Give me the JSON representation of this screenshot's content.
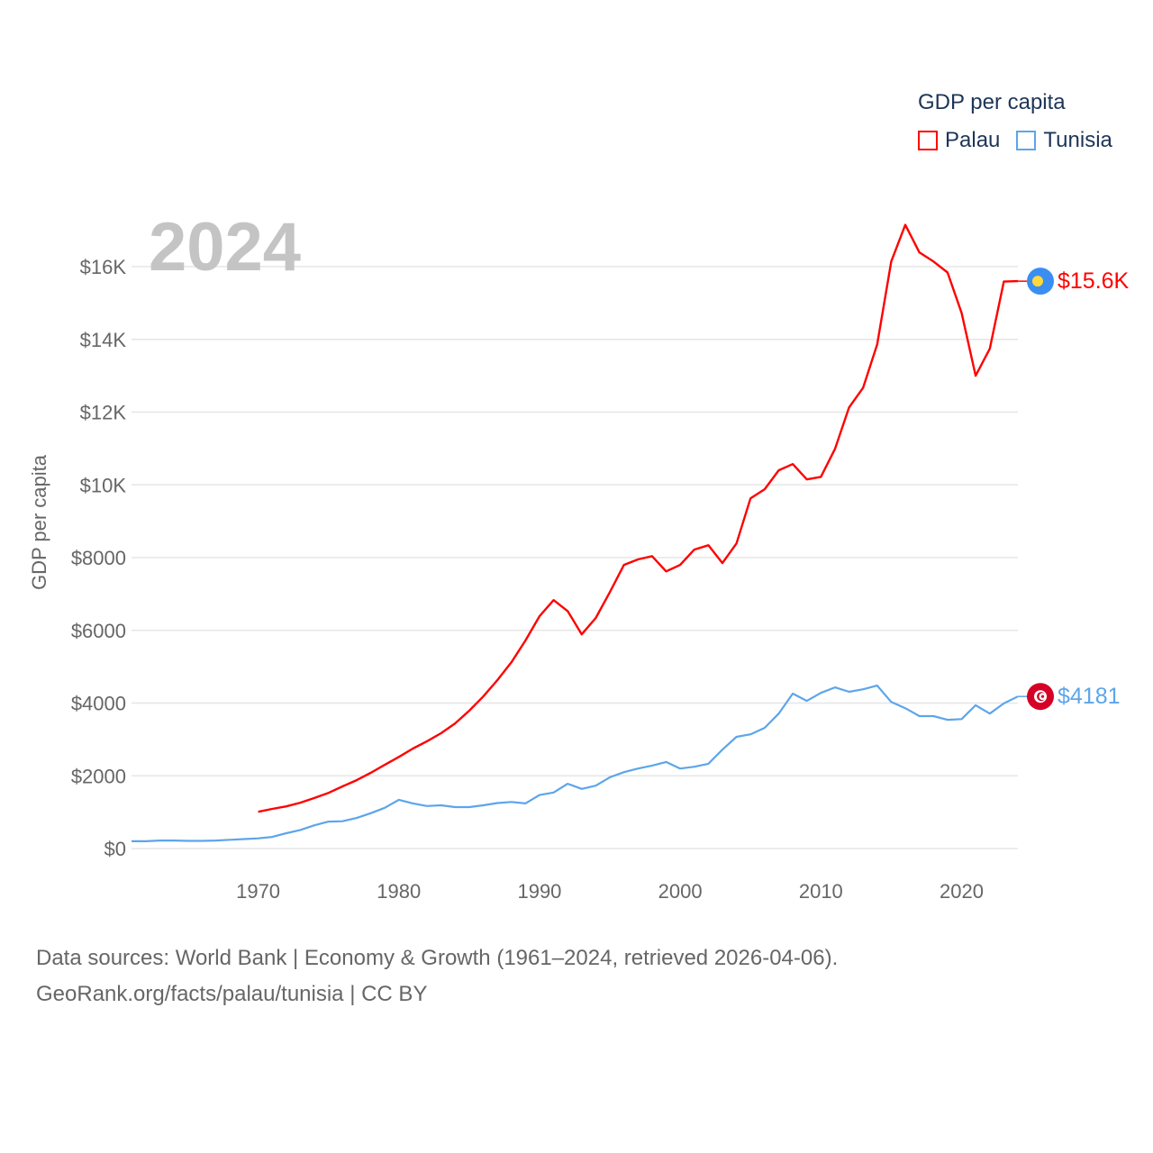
{
  "chart_data": {
    "type": "line",
    "title": "GDP per capita",
    "year_label": "2024",
    "ylabel": "GDP per capita",
    "xlabel": "",
    "xlim": [
      1961,
      2024
    ],
    "ylim": [
      0,
      17200
    ],
    "x_ticks": [
      1970,
      1980,
      1990,
      2000,
      2010,
      2020
    ],
    "y_ticks": [
      {
        "value": 0,
        "label": "$0"
      },
      {
        "value": 2000,
        "label": "$2000"
      },
      {
        "value": 4000,
        "label": "$4000"
      },
      {
        "value": 6000,
        "label": "$6000"
      },
      {
        "value": 8000,
        "label": "$8000"
      },
      {
        "value": 10000,
        "label": "$10K"
      },
      {
        "value": 12000,
        "label": "$12K"
      },
      {
        "value": 14000,
        "label": "$14K"
      },
      {
        "value": 16000,
        "label": "$16K"
      }
    ],
    "grid": true,
    "legend_position": "top-right",
    "series": [
      {
        "name": "Palau",
        "color": "#ff0000",
        "end_label": "$15.6K",
        "flag_icon": "palau-flag-icon",
        "start_year": 1970,
        "values": [
          1010,
          1090,
          1160,
          1260,
          1390,
          1530,
          1710,
          1880,
          2080,
          2300,
          2520,
          2750,
          2950,
          3170,
          3440,
          3790,
          4180,
          4630,
          5120,
          5720,
          6390,
          6830,
          6530,
          5890,
          6340,
          7050,
          7800,
          7950,
          8040,
          7620,
          7800,
          8220,
          8340,
          7850,
          8390,
          9630,
          9880,
          10400,
          10570,
          10150,
          10220,
          10990,
          12130,
          12670,
          13860,
          16140,
          17150,
          16390,
          16140,
          15840,
          14730,
          13000,
          13740,
          15590,
          15600
        ]
      },
      {
        "name": "Tunisia",
        "color": "#5da5ea",
        "end_label": "$4181",
        "flag_icon": "tunisia-flag-icon",
        "start_year": 1961,
        "values": [
          200,
          200,
          220,
          220,
          210,
          210,
          220,
          240,
          260,
          280,
          320,
          420,
          510,
          640,
          740,
          750,
          840,
          970,
          1120,
          1340,
          1240,
          1170,
          1190,
          1140,
          1140,
          1190,
          1250,
          1280,
          1240,
          1470,
          1540,
          1780,
          1640,
          1730,
          1960,
          2100,
          2200,
          2280,
          2380,
          2200,
          2250,
          2330,
          2720,
          3070,
          3140,
          3320,
          3710,
          4260,
          4060,
          4280,
          4430,
          4310,
          4380,
          4480,
          4030,
          3860,
          3640,
          3640,
          3540,
          3560,
          3940,
          3710,
          3990,
          4181
        ]
      }
    ]
  },
  "footer": {
    "line1": "Data sources: World Bank | Economy & Growth (1961–2024, retrieved 2026-04-06).",
    "line2": "GeoRank.org/facts/palau/tunisia | CC BY"
  }
}
